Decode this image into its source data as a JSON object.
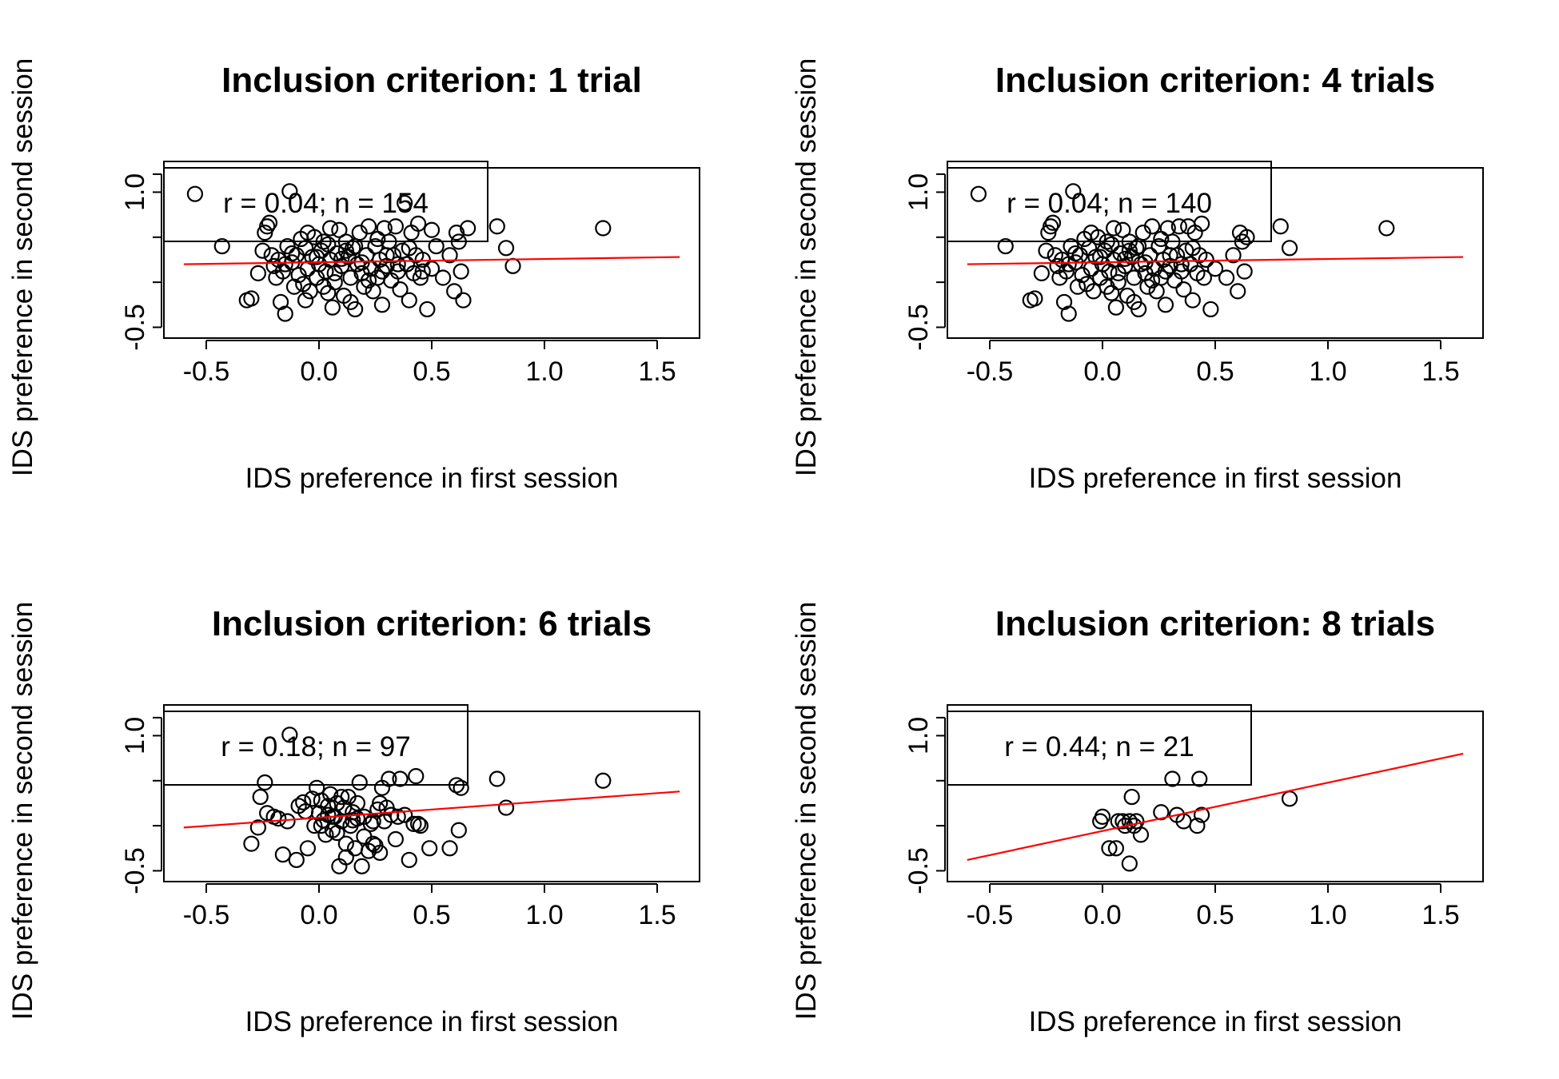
{
  "chart_data": [
    {
      "type": "scatter",
      "title": "Inclusion criterion: 1 trial",
      "xlabel": "IDS preference in first session",
      "ylabel": "IDS preference in second session",
      "xlim": [
        -0.6,
        1.6
      ],
      "ylim": [
        -0.55,
        1.2
      ],
      "xticks": [
        "-0.5",
        "0.0",
        "0.5",
        "1.0",
        "1.5"
      ],
      "yticks": [
        "-0.5",
        "1.0"
      ],
      "legend": "r = 0.04; n = 154",
      "legend_position": "top-left",
      "fit_line": {
        "x": [
          -0.6,
          1.6
        ],
        "y": [
          0.2,
          0.28
        ]
      },
      "points": [
        [
          -0.55,
          0.98
        ],
        [
          -0.43,
          0.4
        ],
        [
          -0.32,
          -0.2
        ],
        [
          -0.3,
          -0.18
        ],
        [
          -0.27,
          0.1
        ],
        [
          -0.25,
          0.35
        ],
        [
          -0.24,
          0.55
        ],
        [
          -0.23,
          0.62
        ],
        [
          -0.22,
          0.66
        ],
        [
          -0.21,
          0.3
        ],
        [
          -0.2,
          0.18
        ],
        [
          -0.19,
          0.05
        ],
        [
          -0.18,
          0.25
        ],
        [
          -0.17,
          -0.22
        ],
        [
          -0.16,
          0.12
        ],
        [
          -0.15,
          -0.35
        ],
        [
          -0.14,
          0.4
        ],
        [
          -0.13,
          1.01
        ],
        [
          -0.12,
          0.22
        ],
        [
          -0.11,
          -0.05
        ],
        [
          -0.1,
          0.3
        ],
        [
          -0.09,
          0.08
        ],
        [
          -0.08,
          0.48
        ],
        [
          -0.07,
          -0.02
        ],
        [
          -0.06,
          0.38
        ],
        [
          -0.05,
          0.15
        ],
        [
          -0.04,
          -0.1
        ],
        [
          -0.03,
          0.28
        ],
        [
          -0.02,
          0.5
        ],
        [
          -0.01,
          0.05
        ],
        [
          0.0,
          0.2
        ],
        [
          0.01,
          0.35
        ],
        [
          0.02,
          -0.05
        ],
        [
          0.03,
          0.12
        ],
        [
          0.04,
          0.42
        ],
        [
          0.05,
          0.25
        ],
        [
          0.06,
          -0.28
        ],
        [
          0.07,
          0.1
        ],
        [
          0.08,
          0.32
        ],
        [
          0.09,
          0.58
        ],
        [
          0.1,
          0.18
        ],
        [
          0.11,
          -0.15
        ],
        [
          0.12,
          0.45
        ],
        [
          0.13,
          0.28
        ],
        [
          0.14,
          0.05
        ],
        [
          0.15,
          0.38
        ],
        [
          0.16,
          -0.3
        ],
        [
          0.17,
          0.2
        ],
        [
          0.18,
          0.55
        ],
        [
          0.19,
          0.1
        ],
        [
          0.2,
          -0.05
        ],
        [
          0.21,
          0.3
        ],
        [
          0.22,
          0.62
        ],
        [
          0.23,
          0.15
        ],
        [
          0.24,
          -0.1
        ],
        [
          0.25,
          0.4
        ],
        [
          0.26,
          0.05
        ],
        [
          0.27,
          0.25
        ],
        [
          0.28,
          -0.25
        ],
        [
          0.29,
          0.6
        ],
        [
          0.3,
          0.18
        ],
        [
          0.31,
          0.45
        ],
        [
          0.32,
          0.02
        ],
        [
          0.33,
          0.3
        ],
        [
          0.34,
          0.62
        ],
        [
          0.35,
          0.12
        ],
        [
          0.36,
          -0.08
        ],
        [
          0.37,
          0.35
        ],
        [
          0.38,
          0.88
        ],
        [
          0.39,
          0.2
        ],
        [
          0.4,
          -0.2
        ],
        [
          0.41,
          0.55
        ],
        [
          0.42,
          0.1
        ],
        [
          0.43,
          0.3
        ],
        [
          0.44,
          0.65
        ],
        [
          0.45,
          0.05
        ],
        [
          0.46,
          0.25
        ],
        [
          0.48,
          -0.3
        ],
        [
          0.5,
          0.15
        ],
        [
          0.52,
          0.4
        ],
        [
          0.55,
          0.05
        ],
        [
          0.58,
          0.3
        ],
        [
          0.6,
          -0.1
        ],
        [
          0.61,
          0.55
        ],
        [
          0.62,
          0.45
        ],
        [
          0.63,
          0.12
        ],
        [
          0.64,
          -0.2
        ],
        [
          0.66,
          0.6
        ],
        [
          0.79,
          0.62
        ],
        [
          0.83,
          0.38
        ],
        [
          0.86,
          0.18
        ],
        [
          1.26,
          0.6
        ],
        [
          -0.05,
          0.55
        ],
        [
          0.02,
          0.45
        ],
        [
          0.12,
          0.35
        ],
        [
          0.07,
          0.0
        ],
        [
          -0.01,
          0.28
        ],
        [
          0.16,
          0.4
        ],
        [
          0.26,
          0.48
        ],
        [
          0.3,
          0.3
        ],
        [
          0.19,
          0.22
        ],
        [
          0.22,
          0.02
        ],
        [
          0.35,
          0.2
        ],
        [
          -0.12,
          0.32
        ],
        [
          0.05,
          0.6
        ],
        [
          0.1,
          0.26
        ],
        [
          0.28,
          0.12
        ],
        [
          0.14,
          -0.22
        ],
        [
          0.04,
          -0.12
        ],
        [
          -0.15,
          0.2
        ],
        [
          0.4,
          0.38
        ],
        [
          0.46,
          0.12
        ],
        [
          0.5,
          0.58
        ],
        [
          -0.06,
          -0.2
        ]
      ]
    },
    {
      "type": "scatter",
      "title": "Inclusion criterion: 4 trials",
      "xlabel": "IDS preference in first session",
      "ylabel": "IDS preference in second session",
      "xlim": [
        -0.6,
        1.6
      ],
      "ylim": [
        -0.55,
        1.2
      ],
      "xticks": [
        "-0.5",
        "0.0",
        "0.5",
        "1.0",
        "1.5"
      ],
      "yticks": [
        "-0.5",
        "1.0"
      ],
      "legend": "r = 0.04; n = 140",
      "legend_position": "top-left",
      "fit_line": {
        "x": [
          -0.6,
          1.6
        ],
        "y": [
          0.2,
          0.28
        ]
      },
      "points": [
        [
          -0.55,
          0.98
        ],
        [
          -0.43,
          0.4
        ],
        [
          -0.32,
          -0.2
        ],
        [
          -0.3,
          -0.18
        ],
        [
          -0.27,
          0.1
        ],
        [
          -0.25,
          0.35
        ],
        [
          -0.24,
          0.55
        ],
        [
          -0.23,
          0.62
        ],
        [
          -0.22,
          0.66
        ],
        [
          -0.21,
          0.3
        ],
        [
          -0.2,
          0.18
        ],
        [
          -0.19,
          0.05
        ],
        [
          -0.18,
          0.25
        ],
        [
          -0.17,
          -0.22
        ],
        [
          -0.16,
          0.12
        ],
        [
          -0.15,
          -0.35
        ],
        [
          -0.14,
          0.4
        ],
        [
          -0.13,
          1.01
        ],
        [
          -0.12,
          0.22
        ],
        [
          -0.11,
          -0.05
        ],
        [
          -0.1,
          0.3
        ],
        [
          -0.09,
          0.08
        ],
        [
          -0.08,
          0.48
        ],
        [
          -0.07,
          -0.02
        ],
        [
          -0.06,
          0.38
        ],
        [
          -0.05,
          0.15
        ],
        [
          -0.04,
          -0.1
        ],
        [
          -0.03,
          0.28
        ],
        [
          -0.02,
          0.5
        ],
        [
          -0.01,
          0.05
        ],
        [
          0.0,
          0.2
        ],
        [
          0.01,
          0.35
        ],
        [
          0.02,
          -0.05
        ],
        [
          0.03,
          0.12
        ],
        [
          0.04,
          0.42
        ],
        [
          0.05,
          0.25
        ],
        [
          0.06,
          -0.28
        ],
        [
          0.07,
          0.1
        ],
        [
          0.08,
          0.32
        ],
        [
          0.09,
          0.58
        ],
        [
          0.1,
          0.18
        ],
        [
          0.11,
          -0.15
        ],
        [
          0.12,
          0.45
        ],
        [
          0.13,
          0.28
        ],
        [
          0.14,
          0.05
        ],
        [
          0.15,
          0.38
        ],
        [
          0.16,
          -0.3
        ],
        [
          0.17,
          0.2
        ],
        [
          0.18,
          0.55
        ],
        [
          0.19,
          0.1
        ],
        [
          0.2,
          -0.05
        ],
        [
          0.21,
          0.3
        ],
        [
          0.22,
          0.62
        ],
        [
          0.23,
          0.15
        ],
        [
          0.24,
          -0.1
        ],
        [
          0.25,
          0.4
        ],
        [
          0.26,
          0.05
        ],
        [
          0.27,
          0.25
        ],
        [
          0.28,
          -0.25
        ],
        [
          0.29,
          0.6
        ],
        [
          0.3,
          0.18
        ],
        [
          0.31,
          0.45
        ],
        [
          0.32,
          0.02
        ],
        [
          0.33,
          0.3
        ],
        [
          0.34,
          0.62
        ],
        [
          0.35,
          0.12
        ],
        [
          0.36,
          -0.08
        ],
        [
          0.37,
          0.35
        ],
        [
          0.38,
          0.62
        ],
        [
          0.39,
          0.2
        ],
        [
          0.4,
          -0.2
        ],
        [
          0.41,
          0.55
        ],
        [
          0.42,
          0.1
        ],
        [
          0.43,
          0.3
        ],
        [
          0.44,
          0.65
        ],
        [
          0.45,
          0.05
        ],
        [
          0.46,
          0.25
        ],
        [
          0.48,
          -0.3
        ],
        [
          0.5,
          0.15
        ],
        [
          0.55,
          0.05
        ],
        [
          0.58,
          0.3
        ],
        [
          0.6,
          -0.1
        ],
        [
          0.61,
          0.55
        ],
        [
          0.62,
          0.45
        ],
        [
          0.63,
          0.12
        ],
        [
          0.64,
          0.5
        ],
        [
          0.79,
          0.62
        ],
        [
          0.83,
          0.38
        ],
        [
          1.26,
          0.6
        ],
        [
          -0.05,
          0.55
        ],
        [
          0.02,
          0.45
        ],
        [
          0.12,
          0.35
        ],
        [
          0.07,
          0.0
        ],
        [
          -0.01,
          0.28
        ],
        [
          0.16,
          0.4
        ],
        [
          0.26,
          0.48
        ],
        [
          0.3,
          0.3
        ],
        [
          0.19,
          0.22
        ],
        [
          0.22,
          0.02
        ],
        [
          0.35,
          0.2
        ],
        [
          -0.12,
          0.32
        ],
        [
          0.05,
          0.6
        ],
        [
          0.1,
          0.26
        ],
        [
          0.28,
          0.12
        ],
        [
          0.14,
          -0.22
        ],
        [
          0.04,
          -0.12
        ],
        [
          -0.15,
          0.2
        ],
        [
          0.4,
          0.38
        ]
      ]
    },
    {
      "type": "scatter",
      "title": "Inclusion criterion: 6 trials",
      "xlabel": "IDS preference in first session",
      "ylabel": "IDS preference in second session",
      "xlim": [
        -0.6,
        1.6
      ],
      "ylim": [
        -0.55,
        1.2
      ],
      "xticks": [
        "-0.5",
        "0.0",
        "0.5",
        "1.0",
        "1.5"
      ],
      "yticks": [
        "-0.5",
        "1.0"
      ],
      "legend": "r = 0.18; n = 97",
      "legend_position": "top-left",
      "fit_line": {
        "x": [
          -0.6,
          1.6
        ],
        "y": [
          -0.02,
          0.38
        ]
      },
      "points": [
        [
          -0.3,
          -0.2
        ],
        [
          -0.27,
          -0.02
        ],
        [
          -0.26,
          0.32
        ],
        [
          -0.24,
          0.48
        ],
        [
          -0.23,
          0.14
        ],
        [
          -0.2,
          0.1
        ],
        [
          -0.18,
          0.08
        ],
        [
          -0.16,
          -0.32
        ],
        [
          -0.14,
          0.05
        ],
        [
          -0.13,
          1.01
        ],
        [
          -0.1,
          -0.38
        ],
        [
          -0.09,
          0.22
        ],
        [
          -0.07,
          0.26
        ],
        [
          -0.05,
          -0.25
        ],
        [
          -0.03,
          0.3
        ],
        [
          -0.02,
          0.0
        ],
        [
          -0.01,
          0.42
        ],
        [
          0.0,
          0.14
        ],
        [
          0.01,
          0.28
        ],
        [
          0.02,
          0.06
        ],
        [
          0.03,
          -0.1
        ],
        [
          0.04,
          0.22
        ],
        [
          0.05,
          0.35
        ],
        [
          0.06,
          -0.05
        ],
        [
          0.07,
          0.1
        ],
        [
          0.08,
          0.25
        ],
        [
          0.09,
          -0.45
        ],
        [
          0.1,
          0.05
        ],
        [
          0.11,
          0.2
        ],
        [
          0.12,
          -0.2
        ],
        [
          0.13,
          0.32
        ],
        [
          0.14,
          0.0
        ],
        [
          0.15,
          0.15
        ],
        [
          0.16,
          -0.25
        ],
        [
          0.17,
          0.25
        ],
        [
          0.18,
          0.48
        ],
        [
          0.19,
          -0.45
        ],
        [
          0.2,
          0.1
        ],
        [
          0.22,
          -0.28
        ],
        [
          0.23,
          0.02
        ],
        [
          0.24,
          -0.2
        ],
        [
          0.25,
          -0.22
        ],
        [
          0.26,
          0.18
        ],
        [
          0.27,
          -0.3
        ],
        [
          0.28,
          0.42
        ],
        [
          0.29,
          0.05
        ],
        [
          0.3,
          0.2
        ],
        [
          0.31,
          0.52
        ],
        [
          0.32,
          0.12
        ],
        [
          0.34,
          -0.15
        ],
        [
          0.36,
          0.52
        ],
        [
          0.38,
          0.12
        ],
        [
          0.4,
          -0.38
        ],
        [
          0.42,
          0.02
        ],
        [
          0.43,
          0.55
        ],
        [
          0.44,
          0.02
        ],
        [
          0.45,
          0.0
        ],
        [
          0.49,
          -0.25
        ],
        [
          0.58,
          -0.25
        ],
        [
          0.61,
          0.45
        ],
        [
          0.62,
          -0.05
        ],
        [
          0.63,
          0.42
        ],
        [
          0.79,
          0.52
        ],
        [
          0.83,
          0.2
        ],
        [
          1.26,
          0.5
        ],
        [
          0.01,
          0.0
        ],
        [
          0.1,
          0.32
        ],
        [
          0.06,
          0.1
        ],
        [
          0.15,
          0.06
        ],
        [
          0.2,
          -0.12
        ],
        [
          0.27,
          0.25
        ],
        [
          0.04,
          0.12
        ],
        [
          -0.06,
          0.16
        ],
        [
          0.12,
          -0.35
        ],
        [
          0.17,
          0.08
        ],
        [
          0.35,
          0.1
        ],
        [
          0.24,
          0.05
        ],
        [
          0.08,
          -0.08
        ]
      ]
    },
    {
      "type": "scatter",
      "title": "Inclusion criterion: 8 trials",
      "xlabel": "IDS preference in first session",
      "ylabel": "IDS preference in second session",
      "xlim": [
        -0.6,
        1.6
      ],
      "ylim": [
        -0.55,
        1.2
      ],
      "xticks": [
        "-0.5",
        "0.0",
        "0.5",
        "1.0",
        "1.5"
      ],
      "yticks": [
        "-0.5",
        "1.0"
      ],
      "legend": "r = 0.44; n = 21",
      "legend_position": "top-left",
      "fit_line": {
        "x": [
          -0.6,
          1.6
        ],
        "y": [
          -0.38,
          0.8
        ]
      },
      "points": [
        [
          -0.01,
          0.05
        ],
        [
          0.0,
          0.1
        ],
        [
          0.03,
          -0.25
        ],
        [
          0.06,
          -0.25
        ],
        [
          0.07,
          0.05
        ],
        [
          0.09,
          0.05
        ],
        [
          0.1,
          0.0
        ],
        [
          0.12,
          -0.42
        ],
        [
          0.13,
          0.32
        ],
        [
          0.14,
          0.0
        ],
        [
          0.15,
          0.05
        ],
        [
          0.17,
          -0.1
        ],
        [
          0.26,
          0.15
        ],
        [
          0.31,
          0.52
        ],
        [
          0.33,
          0.12
        ],
        [
          0.36,
          0.05
        ],
        [
          0.42,
          0.0
        ],
        [
          0.43,
          0.52
        ],
        [
          0.44,
          0.12
        ],
        [
          0.83,
          0.3
        ],
        [
          0.12,
          0.05
        ]
      ]
    }
  ]
}
